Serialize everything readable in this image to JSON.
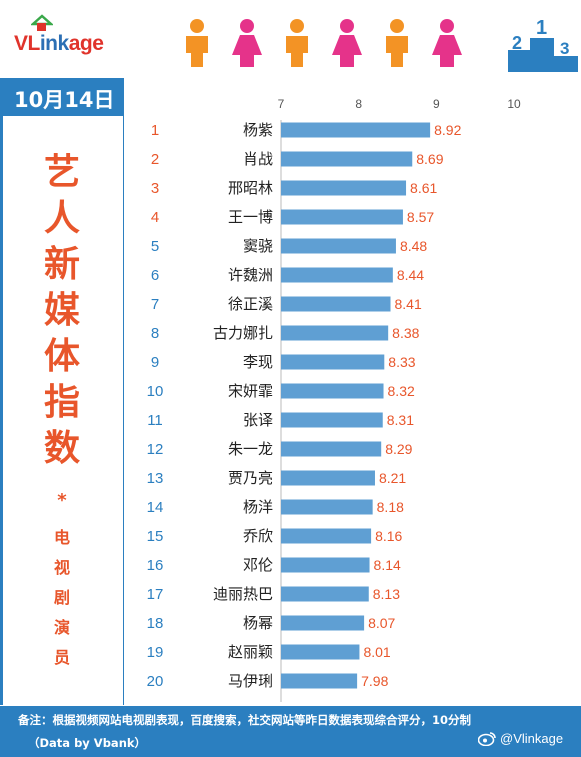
{
  "header": {
    "logo_v": "VL",
    "logo_ink": "ink",
    "logo_age": "age",
    "podium_numbers": [
      "2",
      "1",
      "3"
    ]
  },
  "date": "10月14日",
  "title_chars": [
    "艺",
    "人",
    "新",
    "媒",
    "体",
    "指",
    "数"
  ],
  "title_star": "*",
  "subtitle_chars": [
    "电",
    "视",
    "剧",
    "演",
    "员"
  ],
  "footer": {
    "note": "备注：根据视频网站电视剧表现，百度搜索，社交网站等昨日数据表现综合评分，10分制",
    "source": "（Data by Vbank）",
    "weibo": "@Vlinkage"
  },
  "colors": {
    "accent_blue": "#2b7fc0",
    "bar": "#5f9fd3",
    "orange": "#e8562b",
    "pink": "#e5338a"
  },
  "chart_data": {
    "type": "bar",
    "orientation": "horizontal",
    "xlim": [
      7,
      10
    ],
    "xticks": [
      "7",
      "8",
      "9",
      "10"
    ],
    "ranks": [
      "1",
      "2",
      "3",
      "4",
      "5",
      "6",
      "7",
      "8",
      "9",
      "10",
      "11",
      "12",
      "13",
      "14",
      "15",
      "16",
      "17",
      "18",
      "19",
      "20"
    ],
    "categories": [
      "杨紫",
      "肖战",
      "邢昭林",
      "王一博",
      "窦骁",
      "许魏洲",
      "徐正溪",
      "古力娜扎",
      "李现",
      "宋妍霏",
      "张译",
      "朱一龙",
      "贾乃亮",
      "杨洋",
      "乔欣",
      "邓伦",
      "迪丽热巴",
      "杨幂",
      "赵丽颖",
      "马伊琍"
    ],
    "values": [
      8.92,
      8.69,
      8.61,
      8.57,
      8.48,
      8.44,
      8.41,
      8.38,
      8.33,
      8.32,
      8.31,
      8.29,
      8.21,
      8.18,
      8.16,
      8.14,
      8.13,
      8.07,
      8.01,
      7.98
    ],
    "labels": [
      "8.92",
      "8.69",
      "8.61",
      "8.57",
      "8.48",
      "8.44",
      "8.41",
      "8.38",
      "8.33",
      "8.32",
      "8.31",
      "8.29",
      "8.21",
      "8.18",
      "8.16",
      "8.14",
      "8.13",
      "8.07",
      "8.01",
      "7.98"
    ]
  }
}
